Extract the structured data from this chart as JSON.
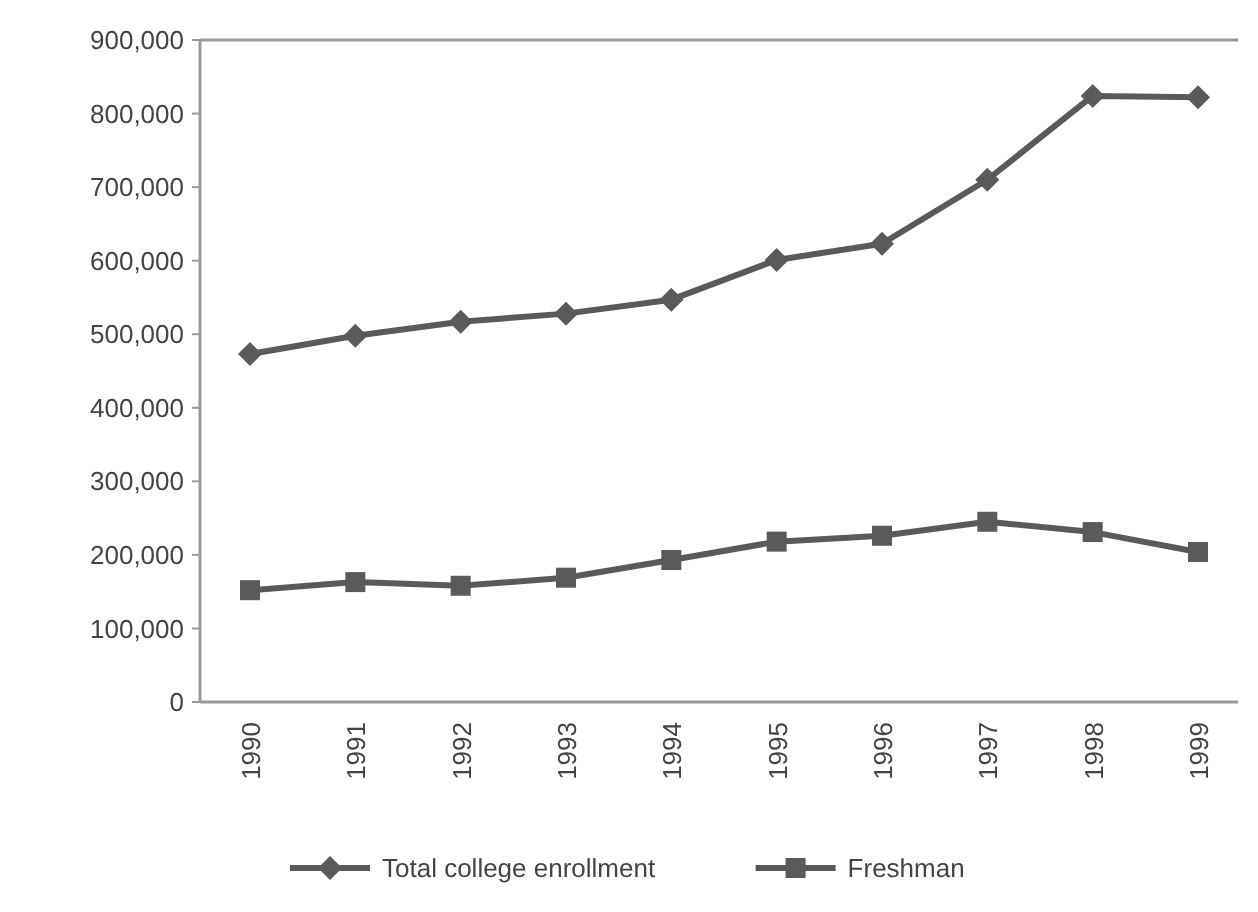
{
  "chart_data": {
    "type": "line",
    "categories": [
      "1990",
      "1991",
      "1992",
      "1993",
      "1994",
      "1995",
      "1996",
      "1997",
      "1998",
      "1999"
    ],
    "series": [
      {
        "name": "Total college enrollment",
        "color": "#5a5a5a",
        "marker": "diamond",
        "values": [
          473000,
          498000,
          517000,
          528000,
          547000,
          601000,
          623000,
          710000,
          824000,
          822000
        ]
      },
      {
        "name": "Freshman",
        "color": "#5a5a5a",
        "marker": "square",
        "values": [
          152000,
          163000,
          158000,
          169000,
          193000,
          218000,
          226000,
          245000,
          231000,
          204000
        ]
      }
    ],
    "ylim": [
      0,
      900000
    ],
    "yticks": [
      {
        "value": 0,
        "label": "0"
      },
      {
        "value": 100000,
        "label": "100,000"
      },
      {
        "value": 200000,
        "label": "200,000"
      },
      {
        "value": 300000,
        "label": "300,000"
      },
      {
        "value": 400000,
        "label": "400,000"
      },
      {
        "value": 500000,
        "label": "500,000"
      },
      {
        "value": 600000,
        "label": "600,000"
      },
      {
        "value": 700000,
        "label": "700,000"
      },
      {
        "value": 800000,
        "label": "800,000"
      },
      {
        "value": 900000,
        "label": "900,000"
      }
    ],
    "grid": false,
    "legend": "bottom",
    "line_style": "solid"
  }
}
